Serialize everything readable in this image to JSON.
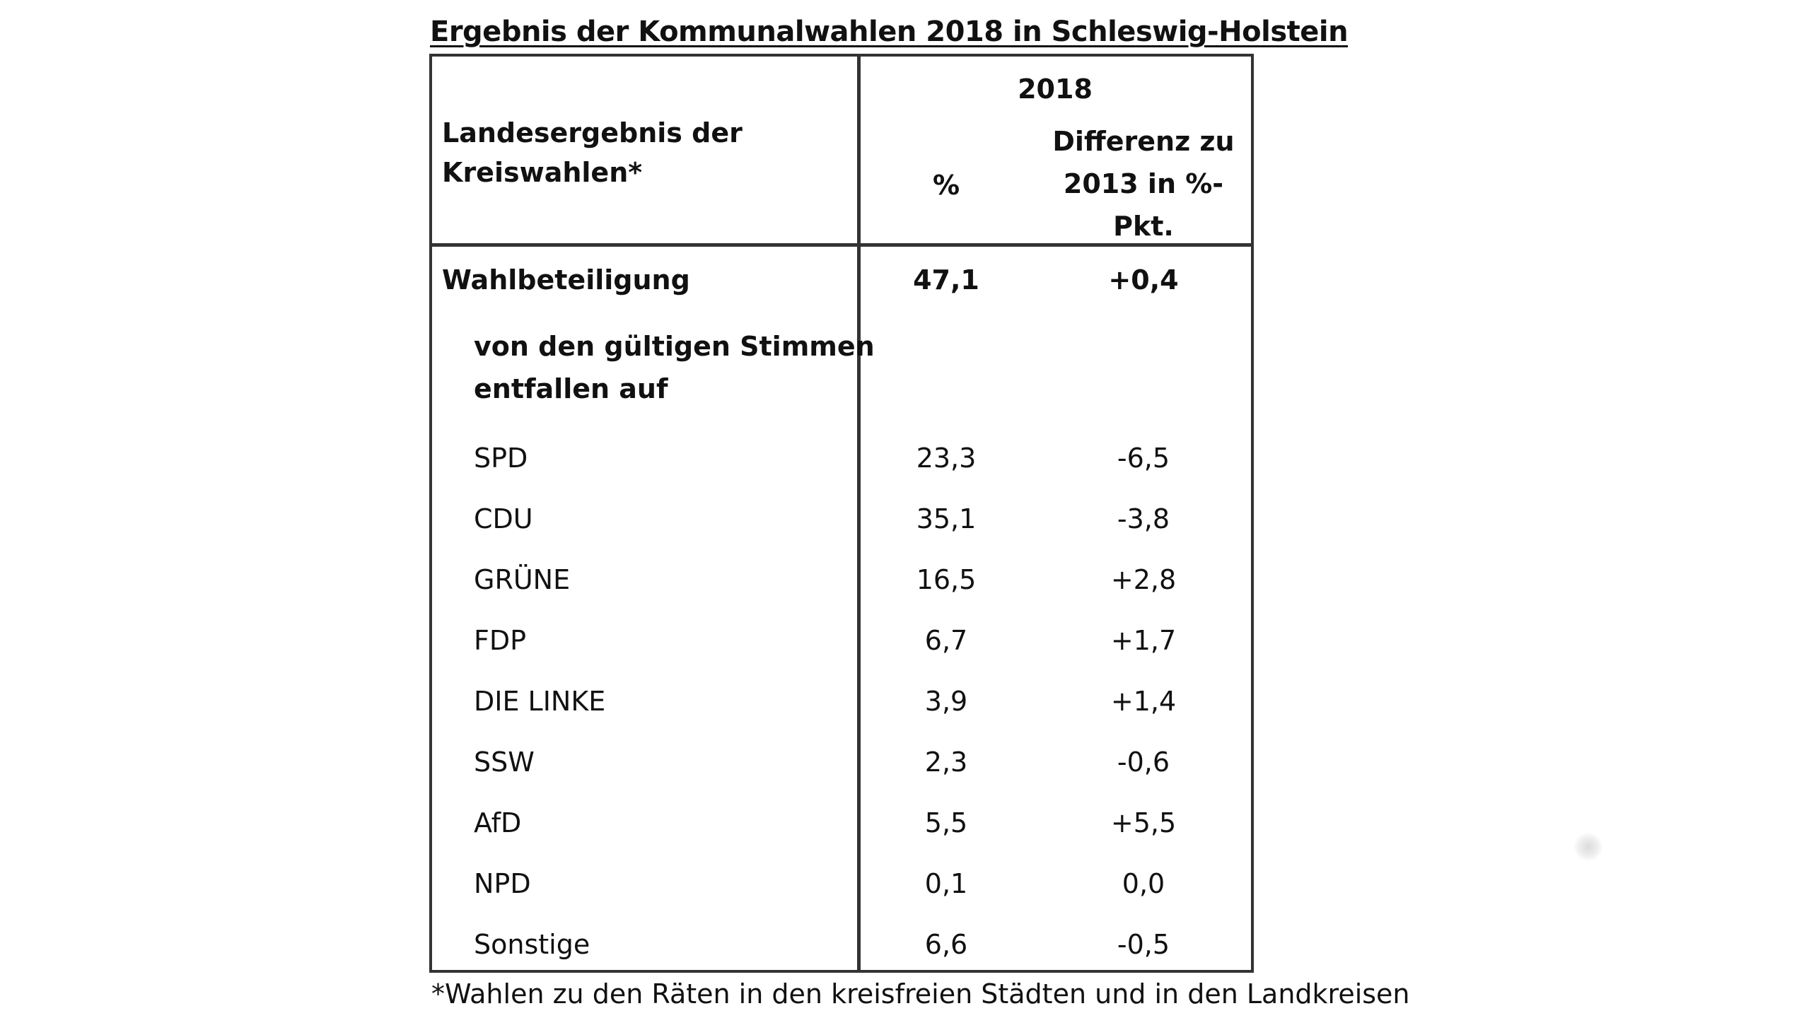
{
  "title": "Ergebnis der Kommunalwahlen 2018 in Schleswig-Holstein",
  "header": {
    "row_label_line1": "Landesergebnis der",
    "row_label_line2": "Kreiswahlen*",
    "year": "2018",
    "col_percent": "%",
    "col_diff_line1": "Differenz zu",
    "col_diff_line2": "2013 in %-",
    "col_diff_line3": "Pkt."
  },
  "turnout": {
    "label": "Wahlbeteiligung",
    "percent": "47,1",
    "diff": "+0,4"
  },
  "subheading": {
    "line1": "von den gültigen Stimmen",
    "line2": "entfallen auf"
  },
  "parties": [
    {
      "name": "SPD",
      "percent": "23,3",
      "diff": "-6,5"
    },
    {
      "name": "CDU",
      "percent": "35,1",
      "diff": "-3,8"
    },
    {
      "name": "GRÜNE",
      "percent": "16,5",
      "diff": "+2,8"
    },
    {
      "name": "FDP",
      "percent": "6,7",
      "diff": "+1,7"
    },
    {
      "name": "DIE LINKE",
      "percent": "3,9",
      "diff": "+1,4"
    },
    {
      "name": "SSW",
      "percent": "2,3",
      "diff": "-0,6"
    },
    {
      "name": "AfD",
      "percent": "5,5",
      "diff": "+5,5"
    },
    {
      "name": "NPD",
      "percent": "0,1",
      "diff": "0,0"
    },
    {
      "name": "Sonstige",
      "percent": "6,6",
      "diff": "-0,5"
    }
  ],
  "footnote": "*Wahlen zu den Räten in den kreisfreien Städten und in den Landkreisen"
}
